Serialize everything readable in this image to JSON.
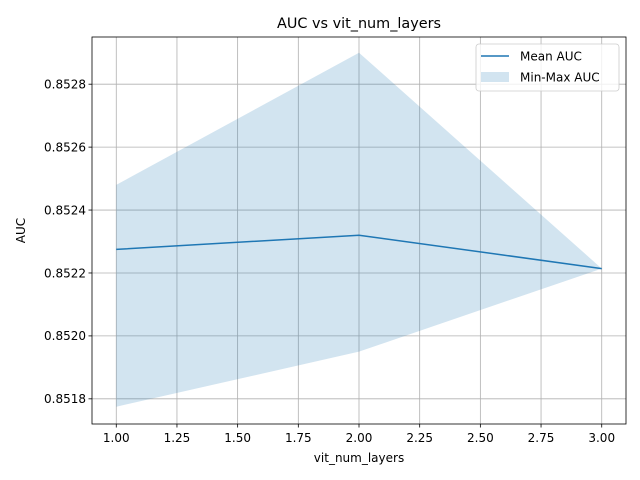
{
  "chart_data": {
    "type": "line",
    "title": "AUC vs vit_num_layers",
    "xlabel": "vit_num_layers",
    "ylabel": "AUC",
    "x": [
      1.0,
      2.0,
      3.0
    ],
    "series": [
      {
        "name": "Mean AUC",
        "kind": "line",
        "values": [
          0.852275,
          0.85232,
          0.852214
        ],
        "color": "#1f77b4"
      },
      {
        "name": "Min-Max AUC",
        "kind": "band",
        "min": [
          0.851775,
          0.85195,
          0.852214
        ],
        "max": [
          0.85248,
          0.8529,
          0.852214
        ],
        "color": "#1f77b4",
        "opacity": 0.2
      }
    ],
    "xlim": [
      0.9,
      3.1
    ],
    "ylim": [
      0.85172,
      0.85295
    ],
    "xticks": [
      1.0,
      1.25,
      1.5,
      1.75,
      2.0,
      2.25,
      2.5,
      2.75,
      3.0
    ],
    "xtick_labels": [
      "1.00",
      "1.25",
      "1.50",
      "1.75",
      "2.00",
      "2.25",
      "2.50",
      "2.75",
      "3.00"
    ],
    "yticks": [
      0.8518,
      0.852,
      0.8522,
      0.8524,
      0.8526,
      0.8528
    ],
    "ytick_labels": [
      "0.8518",
      "0.8520",
      "0.8522",
      "0.8524",
      "0.8526",
      "0.8528"
    ],
    "grid": true,
    "legend": "top-right"
  }
}
